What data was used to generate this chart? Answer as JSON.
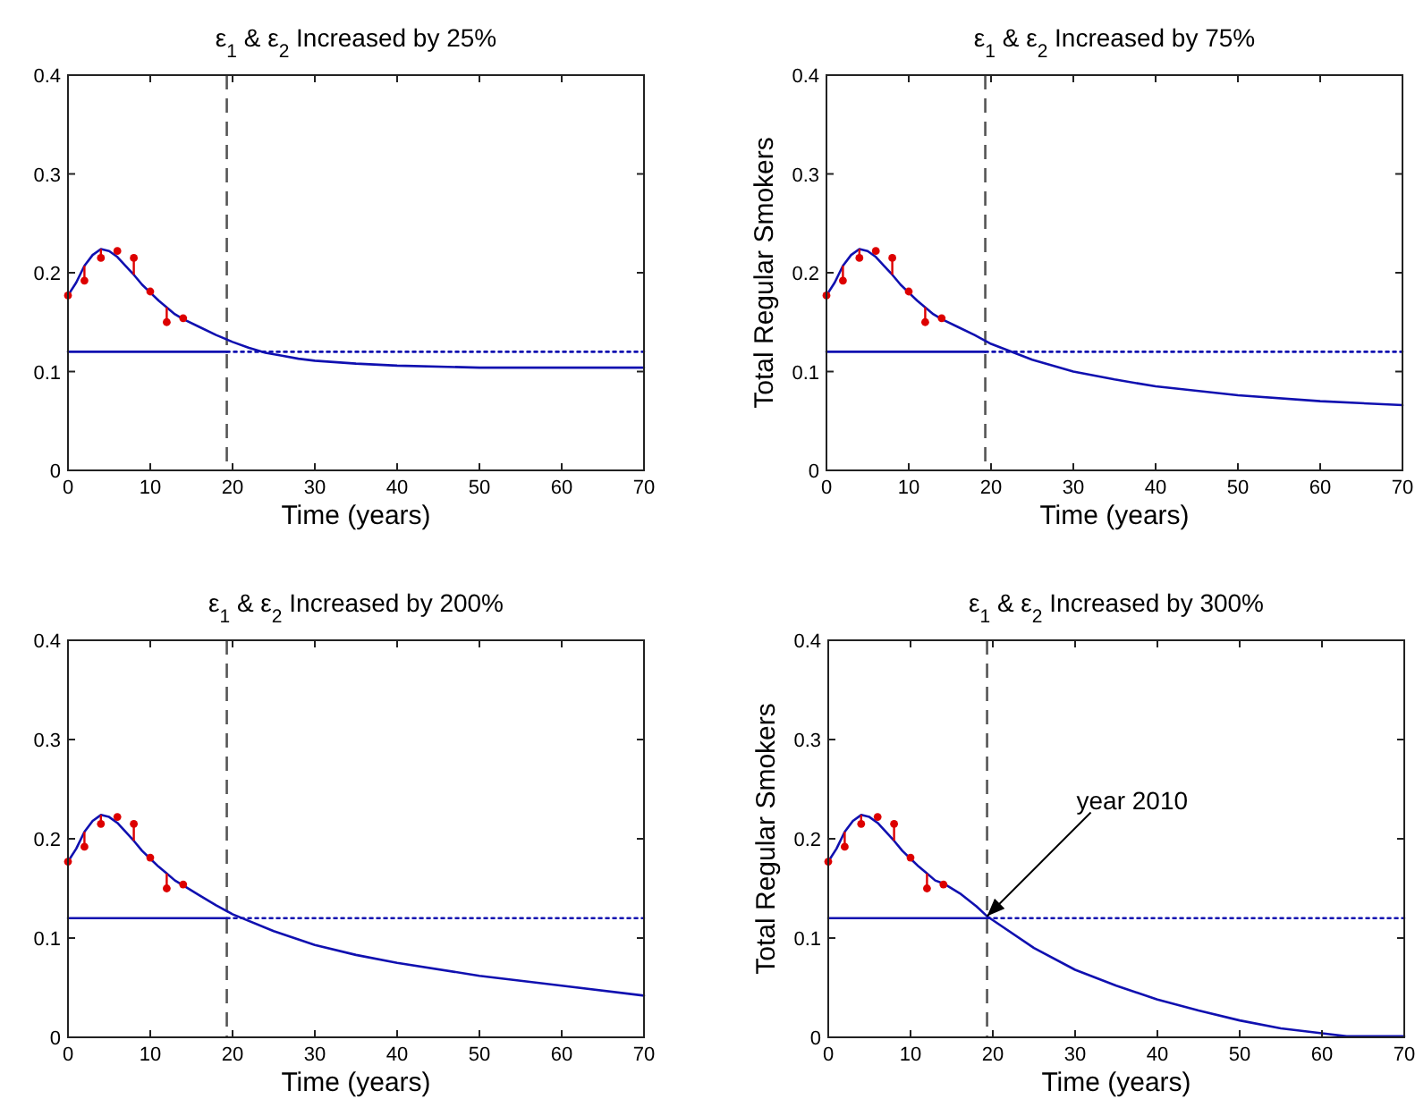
{
  "chart_data": [
    {
      "type": "line",
      "title": "ε$_{1}$ & ε$_{2}$ Increased by 25%",
      "xlabel": "Time (years)",
      "xlim": [
        0,
        70
      ],
      "ylim": [
        0,
        0.4
      ],
      "xticks": [
        0,
        10,
        20,
        30,
        40,
        50,
        60,
        70
      ],
      "yticks": [
        0,
        0.1,
        0.2,
        0.3,
        0.4
      ],
      "series": [
        {
          "type": "line",
          "color": "#1010b0",
          "line_style": "solid",
          "marker": "none",
          "x": [
            0,
            1,
            2,
            3,
            4,
            5,
            6,
            7,
            8,
            9,
            10,
            11,
            12,
            13,
            14,
            16,
            18,
            20,
            22,
            24,
            26,
            28,
            30,
            35,
            40,
            50,
            60,
            70
          ],
          "values": [
            0.177,
            0.19,
            0.207,
            0.218,
            0.224,
            0.222,
            0.216,
            0.207,
            0.198,
            0.188,
            0.18,
            0.172,
            0.165,
            0.158,
            0.153,
            0.145,
            0.137,
            0.13,
            0.124,
            0.119,
            0.116,
            0.113,
            0.111,
            0.108,
            0.106,
            0.104,
            0.104,
            0.104
          ]
        },
        {
          "type": "line",
          "color": "#1010b0",
          "line_style": "solid",
          "marker": "none",
          "x": [
            0,
            19.3
          ],
          "values": [
            0.12,
            0.12
          ]
        },
        {
          "type": "line",
          "color": "#1010b0",
          "line_style": "dotted",
          "marker": "none",
          "x": [
            19.3,
            70
          ],
          "values": [
            0.12,
            0.12
          ]
        },
        {
          "type": "scatter",
          "color": "#dd0000",
          "marker": "circle",
          "x": [
            0,
            2,
            4,
            6,
            8,
            10,
            12,
            14
          ],
          "values": [
            0.177,
            0.192,
            0.215,
            0.222,
            0.215,
            0.181,
            0.15,
            0.154
          ],
          "errors": [
            null,
            [
              0.192,
              0.207
            ],
            [
              0.215,
              0.224
            ],
            null,
            [
              0.198,
              0.215
            ],
            null,
            [
              0.15,
              0.165
            ],
            null
          ]
        }
      ],
      "ref_lines": [
        {
          "axis": "x",
          "value": 19.3,
          "color": "#555555",
          "line_style": "dashed"
        }
      ]
    },
    {
      "type": "line",
      "title": "ε$_{1}$ & ε$_{2}$ Increased by 75%",
      "xlabel": "Time (years)",
      "ylabel": "Total Regular Smokers",
      "xlim": [
        0,
        70
      ],
      "ylim": [
        0,
        0.4
      ],
      "xticks": [
        0,
        10,
        20,
        30,
        40,
        50,
        60,
        70
      ],
      "yticks": [
        0,
        0.1,
        0.2,
        0.3,
        0.4
      ],
      "series": [
        {
          "type": "line",
          "color": "#1010b0",
          "line_style": "solid",
          "marker": "none",
          "x": [
            0,
            1,
            2,
            3,
            4,
            5,
            6,
            7,
            8,
            9,
            10,
            11,
            12,
            13,
            14,
            16,
            18,
            20,
            25,
            30,
            35,
            40,
            50,
            60,
            70
          ],
          "values": [
            0.177,
            0.19,
            0.207,
            0.218,
            0.224,
            0.222,
            0.216,
            0.207,
            0.198,
            0.188,
            0.18,
            0.172,
            0.165,
            0.158,
            0.153,
            0.145,
            0.137,
            0.128,
            0.112,
            0.1,
            0.092,
            0.085,
            0.076,
            0.07,
            0.066
          ]
        },
        {
          "type": "line",
          "color": "#1010b0",
          "line_style": "solid",
          "marker": "none",
          "x": [
            0,
            19.3
          ],
          "values": [
            0.12,
            0.12
          ]
        },
        {
          "type": "line",
          "color": "#1010b0",
          "line_style": "dotted",
          "marker": "none",
          "x": [
            19.3,
            70
          ],
          "values": [
            0.12,
            0.12
          ]
        },
        {
          "type": "scatter",
          "color": "#dd0000",
          "marker": "circle",
          "x": [
            0,
            2,
            4,
            6,
            8,
            10,
            12,
            14
          ],
          "values": [
            0.177,
            0.192,
            0.215,
            0.222,
            0.215,
            0.181,
            0.15,
            0.154
          ],
          "errors": [
            null,
            [
              0.192,
              0.207
            ],
            [
              0.215,
              0.224
            ],
            null,
            [
              0.198,
              0.215
            ],
            null,
            [
              0.15,
              0.165
            ],
            null
          ]
        }
      ],
      "ref_lines": [
        {
          "axis": "x",
          "value": 19.3,
          "color": "#555555",
          "line_style": "dashed"
        }
      ]
    },
    {
      "type": "line",
      "title": "ε$_{1}$ & ε$_{2}$ Increased by 200%",
      "xlabel": "Time (years)",
      "xlim": [
        0,
        70
      ],
      "ylim": [
        0,
        0.4
      ],
      "xticks": [
        0,
        10,
        20,
        30,
        40,
        50,
        60,
        70
      ],
      "yticks": [
        0,
        0.1,
        0.2,
        0.3,
        0.4
      ],
      "series": [
        {
          "type": "line",
          "color": "#1010b0",
          "line_style": "solid",
          "marker": "none",
          "x": [
            0,
            1,
            2,
            3,
            4,
            5,
            6,
            7,
            8,
            9,
            10,
            11,
            12,
            13,
            14,
            16,
            18,
            20,
            25,
            30,
            35,
            40,
            50,
            60,
            70
          ],
          "values": [
            0.177,
            0.19,
            0.207,
            0.218,
            0.224,
            0.222,
            0.216,
            0.207,
            0.198,
            0.188,
            0.18,
            0.172,
            0.165,
            0.158,
            0.153,
            0.143,
            0.133,
            0.124,
            0.107,
            0.093,
            0.083,
            0.075,
            0.062,
            0.052,
            0.042
          ]
        },
        {
          "type": "line",
          "color": "#1010b0",
          "line_style": "solid",
          "marker": "none",
          "x": [
            0,
            19.3
          ],
          "values": [
            0.12,
            0.12
          ]
        },
        {
          "type": "line",
          "color": "#1010b0",
          "line_style": "dotted",
          "marker": "none",
          "x": [
            19.3,
            70
          ],
          "values": [
            0.12,
            0.12
          ]
        },
        {
          "type": "scatter",
          "color": "#dd0000",
          "marker": "circle",
          "x": [
            0,
            2,
            4,
            6,
            8,
            10,
            12,
            14
          ],
          "values": [
            0.177,
            0.192,
            0.215,
            0.222,
            0.215,
            0.181,
            0.15,
            0.154
          ],
          "errors": [
            null,
            [
              0.192,
              0.207
            ],
            [
              0.215,
              0.224
            ],
            null,
            [
              0.198,
              0.215
            ],
            null,
            [
              0.15,
              0.165
            ],
            null
          ]
        }
      ],
      "ref_lines": [
        {
          "axis": "x",
          "value": 19.3,
          "color": "#555555",
          "line_style": "dashed"
        }
      ]
    },
    {
      "type": "line",
      "title": "ε$_{1}$ & ε$_{2}$ Increased by 300%",
      "xlabel": "Time (years)",
      "ylabel": "Total Regular Smokers",
      "xlim": [
        0,
        70
      ],
      "ylim": [
        0,
        0.4
      ],
      "xticks": [
        0,
        10,
        20,
        30,
        40,
        50,
        60,
        70
      ],
      "yticks": [
        0,
        0.1,
        0.2,
        0.3,
        0.4
      ],
      "annotations": [
        {
          "text": "year 2010",
          "x": 19.3,
          "y": 0.122
        }
      ],
      "series": [
        {
          "type": "line",
          "color": "#1010b0",
          "line_style": "solid",
          "marker": "none",
          "x": [
            0,
            1,
            2,
            3,
            4,
            5,
            6,
            7,
            8,
            9,
            10,
            11,
            12,
            13,
            14,
            16,
            18,
            19.3,
            20,
            25,
            30,
            35,
            40,
            45,
            50,
            55,
            60,
            63,
            70
          ],
          "values": [
            0.177,
            0.19,
            0.207,
            0.218,
            0.224,
            0.222,
            0.216,
            0.207,
            0.198,
            0.188,
            0.18,
            0.172,
            0.165,
            0.158,
            0.155,
            0.145,
            0.132,
            0.122,
            0.118,
            0.09,
            0.068,
            0.052,
            0.038,
            0.027,
            0.017,
            0.009,
            0.004,
            0.001,
            0.001
          ]
        },
        {
          "type": "line",
          "color": "#1010b0",
          "line_style": "solid",
          "marker": "none",
          "x": [
            0,
            19.3
          ],
          "values": [
            0.12,
            0.12
          ]
        },
        {
          "type": "line",
          "color": "#1010b0",
          "line_style": "dotted",
          "marker": "none",
          "x": [
            19.3,
            70
          ],
          "values": [
            0.12,
            0.12
          ]
        },
        {
          "type": "scatter",
          "color": "#dd0000",
          "marker": "circle",
          "x": [
            0,
            2,
            4,
            6,
            8,
            10,
            12,
            14
          ],
          "values": [
            0.177,
            0.192,
            0.215,
            0.222,
            0.215,
            0.181,
            0.15,
            0.154
          ],
          "errors": [
            null,
            [
              0.192,
              0.207
            ],
            [
              0.215,
              0.224
            ],
            null,
            [
              0.198,
              0.215
            ],
            null,
            [
              0.15,
              0.165
            ],
            null
          ]
        }
      ],
      "ref_lines": [
        {
          "axis": "x",
          "value": 19.3,
          "color": "#555555",
          "line_style": "dashed"
        }
      ]
    }
  ]
}
